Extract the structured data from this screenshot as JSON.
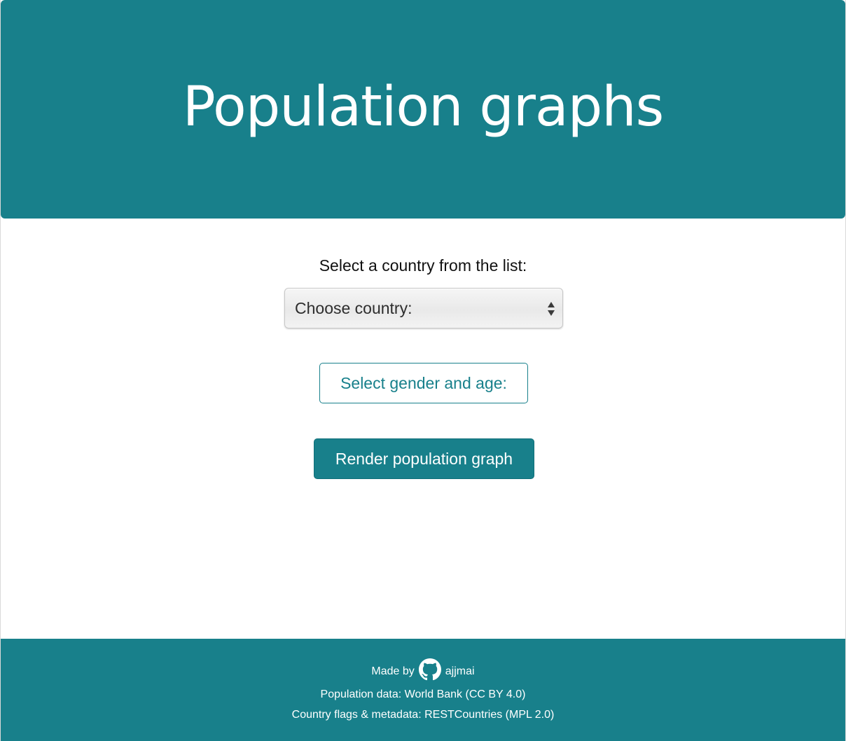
{
  "header": {
    "title": "Population graphs"
  },
  "main": {
    "country_label": "Select a country from the list:",
    "country_select": {
      "selected": "Choose country:"
    },
    "gender_age_button": "Select gender and age:",
    "render_button": "Render population graph"
  },
  "footer": {
    "made_by_prefix": "Made by",
    "author": "ajjmai",
    "author_icon": "github-icon",
    "population_data": "Population data: World Bank (CC BY 4.0)",
    "flags_metadata": "Country flags & metadata: RESTCountries (MPL 2.0)"
  },
  "colors": {
    "primary": "#18808b",
    "background": "#ffffff",
    "text": "#111111"
  }
}
